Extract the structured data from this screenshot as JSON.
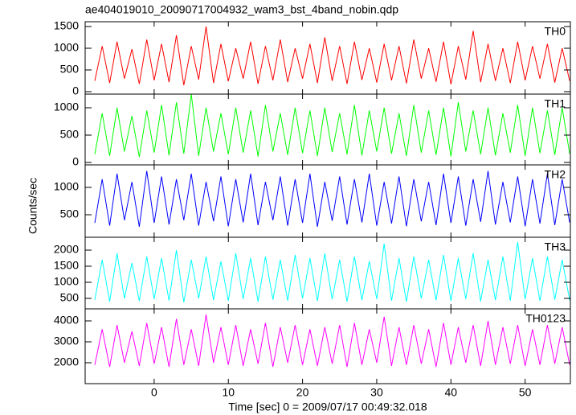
{
  "chart_data": [
    {
      "type": "line",
      "title": "ae404019010_20090717004932_wam3_bst_4band_nobin.qdp",
      "x": [
        -8,
        -7,
        -6,
        -5,
        -4,
        -3,
        -2,
        -1,
        0,
        1,
        2,
        3,
        4,
        5,
        6,
        7,
        8,
        9,
        10,
        11,
        12,
        13,
        14,
        15,
        16,
        17,
        18,
        19,
        20,
        21,
        22,
        23,
        24,
        25,
        26,
        27,
        28,
        29,
        30,
        31,
        32,
        33,
        34,
        35,
        36,
        37,
        38,
        39,
        40,
        41,
        42,
        43,
        44,
        45,
        46,
        47,
        48,
        49,
        50,
        51,
        52,
        53,
        54,
        55,
        56
      ],
      "series": [
        {
          "name": "TH0",
          "color": "#ff0000",
          "values": [
            250,
            1050,
            200,
            1150,
            300,
            980,
            180,
            1200,
            260,
            1100,
            220,
            1300,
            150,
            1050,
            280,
            1500,
            200,
            1100,
            240,
            1000,
            300,
            1150,
            180,
            1050,
            260,
            1200,
            220,
            1000,
            300,
            1100,
            200,
            1250,
            250,
            1050,
            180,
            1150,
            270,
            1000,
            210,
            1100,
            260,
            1050,
            190,
            1200,
            300,
            1000,
            230,
            1150,
            170,
            1050,
            280,
            1400,
            220,
            1100,
            250,
            1000,
            200,
            1150,
            260,
            1050,
            300,
            1100,
            210,
            1000,
            250
          ]
        }
      ],
      "xlim": [
        -9.3,
        56.1
      ],
      "xticks": [
        0,
        10,
        20,
        30,
        40,
        50
      ],
      "ylim": [
        -56,
        1611
      ],
      "yticks": [
        0,
        500,
        1000,
        1500
      ]
    },
    {
      "type": "line",
      "x": [
        -8,
        -7,
        -6,
        -5,
        -4,
        -3,
        -2,
        -1,
        0,
        1,
        2,
        3,
        4,
        5,
        6,
        7,
        8,
        9,
        10,
        11,
        12,
        13,
        14,
        15,
        16,
        17,
        18,
        19,
        20,
        21,
        22,
        23,
        24,
        25,
        26,
        27,
        28,
        29,
        30,
        31,
        32,
        33,
        34,
        35,
        36,
        37,
        38,
        39,
        40,
        41,
        42,
        43,
        44,
        45,
        46,
        47,
        48,
        49,
        50,
        51,
        52,
        53,
        54,
        55,
        56
      ],
      "series": [
        {
          "name": "TH1",
          "color": "#00ff00",
          "values": [
            150,
            900,
            120,
            1000,
            200,
            850,
            100,
            950,
            180,
            1050,
            130,
            1100,
            160,
            1250,
            120,
            1000,
            200,
            900,
            150,
            1000,
            180,
            950,
            110,
            1050,
            200,
            900,
            140,
            1000,
            170,
            950,
            120,
            1000,
            190,
            900,
            150,
            1050,
            130,
            950,
            200,
            1000,
            160,
            900,
            120,
            1050,
            180,
            950,
            140,
            1000,
            110,
            1100,
            200,
            950,
            150,
            1000,
            130,
            900,
            180,
            1050,
            120,
            1000,
            170,
            950,
            140,
            1000,
            160
          ]
        }
      ],
      "xlim": [
        -9.3,
        56.1
      ],
      "xticks": [
        0,
        10,
        20,
        30,
        40,
        50
      ],
      "ylim": [
        -44,
        1250
      ],
      "yticks": [
        0,
        500,
        1000
      ]
    },
    {
      "type": "line",
      "ylabel": "Counts/sec",
      "x": [
        -8,
        -7,
        -6,
        -5,
        -4,
        -3,
        -2,
        -1,
        0,
        1,
        2,
        3,
        4,
        5,
        6,
        7,
        8,
        9,
        10,
        11,
        12,
        13,
        14,
        15,
        16,
        17,
        18,
        19,
        20,
        21,
        22,
        23,
        24,
        25,
        26,
        27,
        28,
        29,
        30,
        31,
        32,
        33,
        34,
        35,
        36,
        37,
        38,
        39,
        40,
        41,
        42,
        43,
        44,
        45,
        46,
        47,
        48,
        49,
        50,
        51,
        52,
        53,
        54,
        55,
        56
      ],
      "series": [
        {
          "name": "TH2",
          "color": "#0000ff",
          "values": [
            350,
            1150,
            300,
            1250,
            400,
            1100,
            280,
            1300,
            350,
            1200,
            320,
            1150,
            400,
            1250,
            300,
            1100,
            380,
            1200,
            290,
            1150,
            360,
            1250,
            310,
            1100,
            400,
            1200,
            300,
            1150,
            350,
            1250,
            280,
            1100,
            390,
            1200,
            320,
            1150,
            360,
            1250,
            300,
            1100,
            340,
            1200,
            290,
            1150,
            380,
            1100,
            310,
            1250,
            350,
            1200,
            300,
            1150,
            370,
            1300,
            320,
            1100,
            360,
            1200,
            290,
            1150,
            340,
            1250,
            310,
            1150,
            360
          ]
        }
      ],
      "xlim": [
        -9.3,
        56.1
      ],
      "xticks": [
        0,
        10,
        20,
        30,
        40,
        50
      ],
      "ylim": [
        88,
        1412
      ],
      "yticks": [
        500,
        1000
      ]
    },
    {
      "type": "line",
      "x": [
        -8,
        -7,
        -6,
        -5,
        -4,
        -3,
        -2,
        -1,
        0,
        1,
        2,
        3,
        4,
        5,
        6,
        7,
        8,
        9,
        10,
        11,
        12,
        13,
        14,
        15,
        16,
        17,
        18,
        19,
        20,
        21,
        22,
        23,
        24,
        25,
        26,
        27,
        28,
        29,
        30,
        31,
        32,
        33,
        34,
        35,
        36,
        37,
        38,
        39,
        40,
        41,
        42,
        43,
        44,
        45,
        46,
        47,
        48,
        49,
        50,
        51,
        52,
        53,
        54,
        55,
        56
      ],
      "series": [
        {
          "name": "TH3",
          "color": "#00ffff",
          "values": [
            450,
            1700,
            400,
            1900,
            500,
            1600,
            420,
            1800,
            480,
            1750,
            430,
            2000,
            380,
            1700,
            500,
            1800,
            450,
            1650,
            420,
            1900,
            480,
            1750,
            400,
            1800,
            460,
            1700,
            430,
            1850,
            500,
            1750,
            420,
            1900,
            470,
            1700,
            400,
            1800,
            450,
            1650,
            480,
            2200,
            430,
            1750,
            400,
            1800,
            500,
            1700,
            440,
            1850,
            420,
            1750,
            480,
            1900,
            410,
            1700,
            450,
            1800,
            430,
            2250,
            470,
            1750,
            420,
            1800,
            460,
            1700,
            440
          ]
        }
      ],
      "xlim": [
        -9.3,
        56.1
      ],
      "xticks": [
        0,
        10,
        20,
        30,
        40,
        50
      ],
      "ylim": [
        175,
        2400
      ],
      "yticks": [
        500,
        1000,
        1500,
        2000
      ]
    },
    {
      "type": "line",
      "xlabel": "Time [sec] 0 = 2009/07/17 00:49:32.018",
      "x": [
        -8,
        -7,
        -6,
        -5,
        -4,
        -3,
        -2,
        -1,
        0,
        1,
        2,
        3,
        4,
        5,
        6,
        7,
        8,
        9,
        10,
        11,
        12,
        13,
        14,
        15,
        16,
        17,
        18,
        19,
        20,
        21,
        22,
        23,
        24,
        25,
        26,
        27,
        28,
        29,
        30,
        31,
        32,
        33,
        34,
        35,
        36,
        37,
        38,
        39,
        40,
        41,
        42,
        43,
        44,
        45,
        46,
        47,
        48,
        49,
        50,
        51,
        52,
        53,
        54,
        55,
        56
      ],
      "series": [
        {
          "name": "TH0123",
          "color": "#ff00ff",
          "values": [
            1900,
            3600,
            1800,
            3800,
            2000,
            3500,
            1850,
            3900,
            1950,
            3700,
            1800,
            4100,
            1900,
            3600,
            1850,
            4300,
            2000,
            3700,
            1900,
            3800,
            1850,
            3600,
            1950,
            3900,
            1800,
            3700,
            2000,
            3800,
            1900,
            3600,
            1850,
            3700,
            1950,
            3800,
            1800,
            3900,
            1900,
            3600,
            2000,
            4200,
            1850,
            3700,
            1900,
            3800,
            1950,
            3600,
            1800,
            3900,
            1900,
            3700,
            2000,
            3800,
            1850,
            4000,
            1900,
            3700,
            1950,
            3800,
            1850,
            3600,
            1900,
            3800,
            1950,
            3700,
            1900
          ]
        }
      ],
      "xlim": [
        -9.3,
        56.1
      ],
      "xticks": [
        0,
        10,
        20,
        30,
        40,
        50
      ],
      "ylim": [
        1000,
        4577
      ],
      "yticks": [
        2000,
        3000,
        4000
      ]
    }
  ]
}
